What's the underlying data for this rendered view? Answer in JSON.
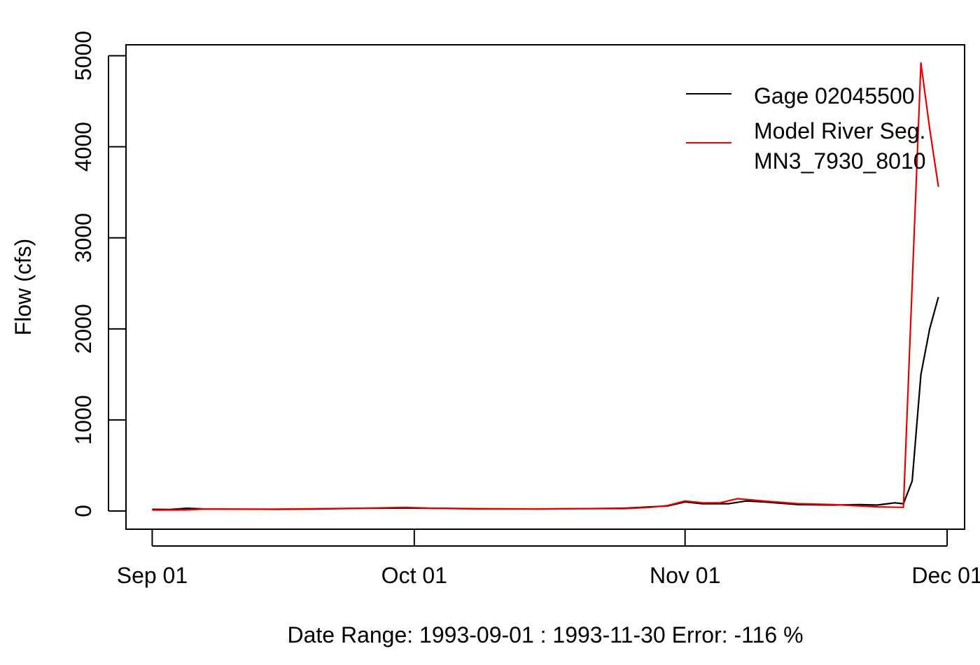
{
  "chart_data": {
    "type": "line",
    "title": "",
    "xlabel": "Date Range: 1993-09-01 : 1993-11-30   Error: -116 %",
    "ylabel": "Flow (cfs)",
    "xlim": [
      "1993-08-29",
      "1993-12-03"
    ],
    "ylim": [
      -200,
      5120
    ],
    "x_ticks": [
      {
        "date": "1993-09-01",
        "label": "Sep 01"
      },
      {
        "date": "1993-10-01",
        "label": "Oct 01"
      },
      {
        "date": "1993-11-01",
        "label": "Nov 01"
      },
      {
        "date": "1993-12-01",
        "label": "Dec 01"
      }
    ],
    "y_ticks": [
      0,
      1000,
      2000,
      3000,
      4000,
      5000
    ],
    "grid": false,
    "legend": {
      "placement": "top-right",
      "entries": [
        {
          "label_lines": [
            "Gage 02045500"
          ],
          "color": "#000000"
        },
        {
          "label_lines": [
            "Model River Seg.",
            " MN3_7930_8010"
          ],
          "color": "#e60000"
        }
      ]
    },
    "series": [
      {
        "color": "#000000",
        "points": [
          [
            "1993-09-01",
            18
          ],
          [
            "1993-09-03",
            17
          ],
          [
            "1993-09-05",
            30
          ],
          [
            "1993-09-07",
            22
          ],
          [
            "1993-09-10",
            20
          ],
          [
            "1993-09-15",
            18
          ],
          [
            "1993-09-20",
            22
          ],
          [
            "1993-09-25",
            30
          ],
          [
            "1993-09-30",
            32
          ],
          [
            "1993-10-03",
            30
          ],
          [
            "1993-10-08",
            25
          ],
          [
            "1993-10-15",
            22
          ],
          [
            "1993-10-20",
            25
          ],
          [
            "1993-10-25",
            30
          ],
          [
            "1993-10-28",
            45
          ],
          [
            "1993-10-30",
            55
          ],
          [
            "1993-11-01",
            100
          ],
          [
            "1993-11-03",
            80
          ],
          [
            "1993-11-06",
            80
          ],
          [
            "1993-11-08",
            110
          ],
          [
            "1993-11-10",
            100
          ],
          [
            "1993-11-14",
            70
          ],
          [
            "1993-11-18",
            65
          ],
          [
            "1993-11-21",
            70
          ],
          [
            "1993-11-23",
            65
          ],
          [
            "1993-11-25",
            90
          ],
          [
            "1993-11-26",
            80
          ],
          [
            "1993-11-27",
            330
          ],
          [
            "1993-11-28",
            1500
          ],
          [
            "1993-11-29",
            2000
          ],
          [
            "1993-11-30",
            2350
          ]
        ]
      },
      {
        "color": "#e60000",
        "points": [
          [
            "1993-09-01",
            10
          ],
          [
            "1993-09-05",
            12
          ],
          [
            "1993-09-07",
            22
          ],
          [
            "1993-09-10",
            20
          ],
          [
            "1993-09-15",
            20
          ],
          [
            "1993-09-20",
            25
          ],
          [
            "1993-09-25",
            30
          ],
          [
            "1993-09-30",
            40
          ],
          [
            "1993-10-03",
            30
          ],
          [
            "1993-10-08",
            22
          ],
          [
            "1993-10-15",
            22
          ],
          [
            "1993-10-20",
            25
          ],
          [
            "1993-10-25",
            25
          ],
          [
            "1993-10-28",
            40
          ],
          [
            "1993-10-30",
            60
          ],
          [
            "1993-11-01",
            110
          ],
          [
            "1993-11-03",
            90
          ],
          [
            "1993-11-05",
            90
          ],
          [
            "1993-11-07",
            135
          ],
          [
            "1993-11-10",
            110
          ],
          [
            "1993-11-14",
            80
          ],
          [
            "1993-11-18",
            70
          ],
          [
            "1993-11-21",
            55
          ],
          [
            "1993-11-23",
            45
          ],
          [
            "1993-11-26",
            40
          ],
          [
            "1993-11-28",
            4920
          ],
          [
            "1993-11-29",
            4200
          ],
          [
            "1993-11-30",
            3560
          ]
        ]
      }
    ]
  }
}
